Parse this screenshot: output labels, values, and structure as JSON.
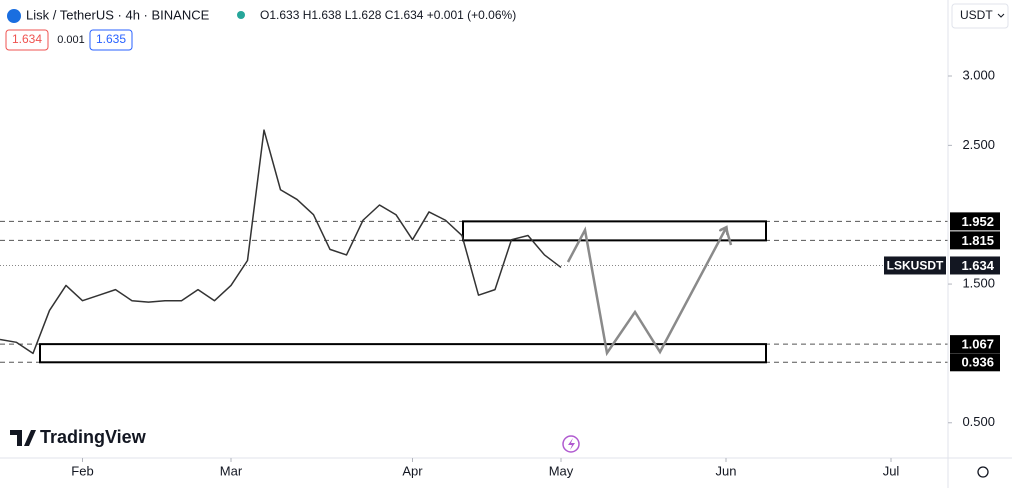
{
  "chart_data": {
    "type": "line",
    "title": "Lisk / TetherUS · 4h · BINANCE",
    "ohlc": "O1.633 H1.638 L1.628 C1.634 +0.001 (+0.06%)",
    "bid": "1.634",
    "spread": "0.001",
    "ask": "1.635",
    "currency": "USDT",
    "branding": "TradingView",
    "symbol": "LSKUSDT",
    "last": 1.634,
    "color": "#333333",
    "categories": [
      null,
      null,
      null,
      null,
      null,
      "Feb",
      null,
      null,
      null,
      null,
      null,
      null,
      null,
      null,
      "Mar",
      null,
      null,
      null,
      null,
      null,
      null,
      null,
      null,
      null,
      null,
      "Apr",
      null,
      null,
      null,
      null,
      null,
      null,
      null,
      null,
      "May",
      null,
      null,
      null,
      null,
      null,
      null,
      null,
      null,
      null,
      "Jun",
      null,
      null,
      null,
      null,
      null,
      null,
      null,
      null,
      null,
      "Jul",
      null,
      null,
      null
    ],
    "values": [
      1.1,
      1.08,
      1.0,
      1.31,
      1.49,
      1.38,
      1.42,
      1.46,
      1.38,
      1.37,
      1.38,
      1.38,
      1.46,
      1.38,
      1.49,
      1.67,
      2.61,
      2.18,
      2.11,
      2.0,
      1.75,
      1.71,
      1.96,
      2.07,
      2.0,
      1.82,
      2.02,
      1.96,
      1.85,
      1.42,
      1.46,
      1.82,
      1.85,
      1.71,
      1.62,
      null,
      null,
      null,
      null,
      null,
      null,
      null,
      null,
      null,
      null,
      null,
      null,
      null,
      null,
      null,
      null,
      null,
      null,
      null,
      null,
      null,
      null,
      null
    ],
    "ylim": [
      0.246,
      3.548
    ],
    "yticks": [
      {
        "value": 3,
        "label": "3.000"
      },
      {
        "value": 2.5,
        "label": "2.500"
      },
      {
        "value": 1.5,
        "label": "1.500"
      },
      {
        "value": 0.5,
        "label": "0.500"
      }
    ],
    "levels": [
      1.952,
      1.815,
      1.067,
      0.936
    ],
    "grid": false
  }
}
